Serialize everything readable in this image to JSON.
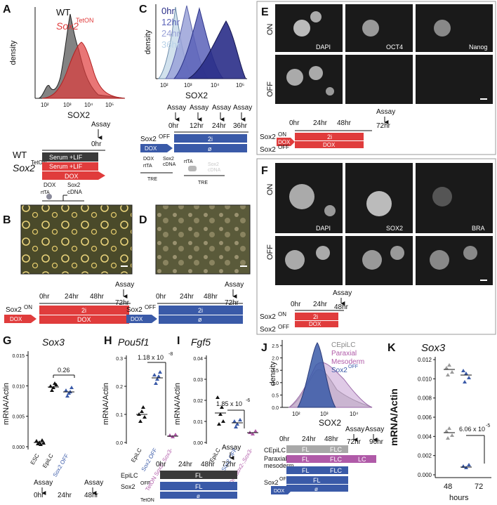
{
  "labels": {
    "A": "A",
    "B": "B",
    "C": "C",
    "D": "D",
    "E": "E",
    "F": "F",
    "G": "G",
    "H": "H",
    "I": "I",
    "J": "J",
    "K": "K"
  },
  "common": {
    "density": "density",
    "sox2": "SOX2",
    "assay": "Assay",
    "mrna": "mRNA/Actin",
    "hours": "hours",
    "on": "ON",
    "off": "OFF",
    "sox2gene": "Sox2",
    "dox": "DOX",
    "twoi": "2i",
    "empty": "ø",
    "fl": "FL",
    "flc": "FLC",
    "lc": "LC",
    "wt": "WT",
    "tre": "TRE",
    "rtta": "rtTA",
    "cdna": "cDNA"
  },
  "panelA": {
    "wt": "WT",
    "tet": "TetON",
    "sox2": "Sox2",
    "t0": "0hr",
    "serum": "Serum +LIF",
    "dox": "DOX"
  },
  "panelC": {
    "t0": "0hr",
    "t12": "12hr",
    "t24": "24hr",
    "t36": "36hr"
  },
  "panelE": {
    "dapi": "DAPI",
    "oct4": "OCT4",
    "nanog": "Nanog"
  },
  "panelF": {
    "dapi": "DAPI",
    "sox2": "SOX2",
    "bra": "BRA"
  },
  "time": {
    "h0": "0hr",
    "h24": "24hr",
    "h48": "48hr",
    "h72": "72hr",
    "h96": "96hr"
  },
  "panelG": {
    "title": "Sox3",
    "p": "0.26",
    "cats": [
      "ESC",
      "EpiLC",
      "Sox2 OFF"
    ],
    "yticks": [
      "0.000",
      "0.005",
      "0.010",
      "0.015"
    ]
  },
  "panelH": {
    "title": "Pou5f1",
    "p": "1.18 x 10",
    "pexp": "-8",
    "cats": [
      "EpiLC",
      "Sox2 OFF",
      "TetON Sox2-,Sox3-"
    ],
    "yticks": [
      "0.0",
      "0.1",
      "0.2",
      "0.3"
    ]
  },
  "panelI": {
    "title": "Fgf5",
    "p": "1.85 x 10",
    "pexp": "-6",
    "cats": [
      "EpiLC",
      "Sox2 OFF",
      "TetON Sox2-,Sox3-"
    ],
    "yticks": [
      "0.00",
      "0.01",
      "0.02",
      "0.03",
      "0.04"
    ]
  },
  "panelHI": {
    "epilc": "EpiLC",
    "sox2": "Sox2",
    "off": "OFF",
    "teton": "TetON",
    "sox2m": "Sox2-",
    "sox3m": "Sox3-"
  },
  "panelJ": {
    "legend": [
      "CEpiLC",
      "Paraxial",
      "Mesoderm",
      "Sox2"
    ],
    "legend_sup": "OFF",
    "rows": [
      "CEpiLC",
      "Paraxial",
      "mesoderm"
    ]
  },
  "panelK": {
    "title": "Sox3",
    "p": "6.06 x 10",
    "pexp": "-5",
    "xcats": [
      "48",
      "72"
    ],
    "yticks": [
      "0.000",
      "0.002",
      "0.004",
      "0.006",
      "0.008",
      "0.010",
      "0.012"
    ]
  },
  "colors": {
    "red": "#e03c3c",
    "blue": "#3a5aa8",
    "darkgray": "#3a3a3a",
    "purple": "#b05aa8",
    "gray": "#a8a8a8",
    "lavender": "#c9a7d6"
  },
  "axisA": {
    "ticks": [
      "10^2",
      "10^3",
      "10^4",
      "10^5"
    ]
  }
}
